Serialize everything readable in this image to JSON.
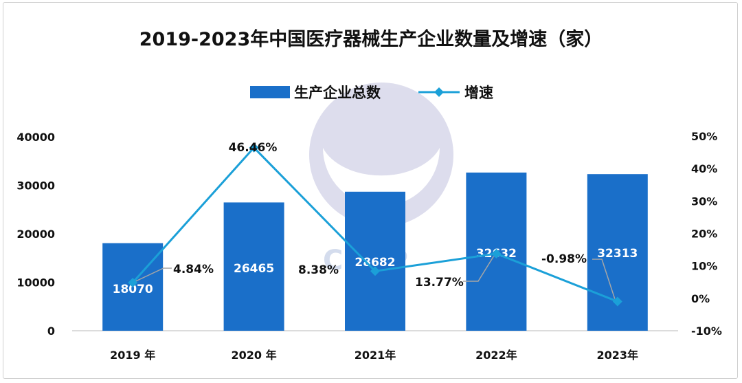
{
  "chart_data": {
    "type": "bar",
    "title": "2019-2023年中国医疗器械生产企业数量及增速（家）",
    "categories": [
      "2019 年",
      "2020 年",
      "2021年",
      "2022年",
      "2023年"
    ],
    "series": [
      {
        "name": "生产企业总数",
        "type": "bar",
        "axis": "left",
        "color": "#1a6fc9",
        "values": [
          18070,
          26465,
          28682,
          32632,
          32313
        ],
        "labels": [
          "18070",
          "26465",
          "28682",
          "32632",
          "32313"
        ]
      },
      {
        "name": "增速",
        "type": "line",
        "axis": "right",
        "color": "#1ba0d8",
        "values": [
          4.84,
          46.46,
          8.38,
          13.77,
          -0.98
        ],
        "labels": [
          "4.84%",
          "46.46%",
          "8.38%",
          "13.77%",
          "-0.98%"
        ]
      }
    ],
    "y_left": {
      "min": 0,
      "max": 40000,
      "ticks": [
        "0",
        "10000",
        "20000",
        "30000",
        "40000"
      ]
    },
    "y_right": {
      "min": -10,
      "max": 50,
      "ticks": [
        "-10%",
        "0%",
        "10%",
        "20%",
        "30%",
        "40%",
        "50%"
      ]
    },
    "grid": false,
    "legend_position": "top"
  },
  "watermark": {
    "text": "CMLP",
    "color": "#cdd7ea"
  }
}
